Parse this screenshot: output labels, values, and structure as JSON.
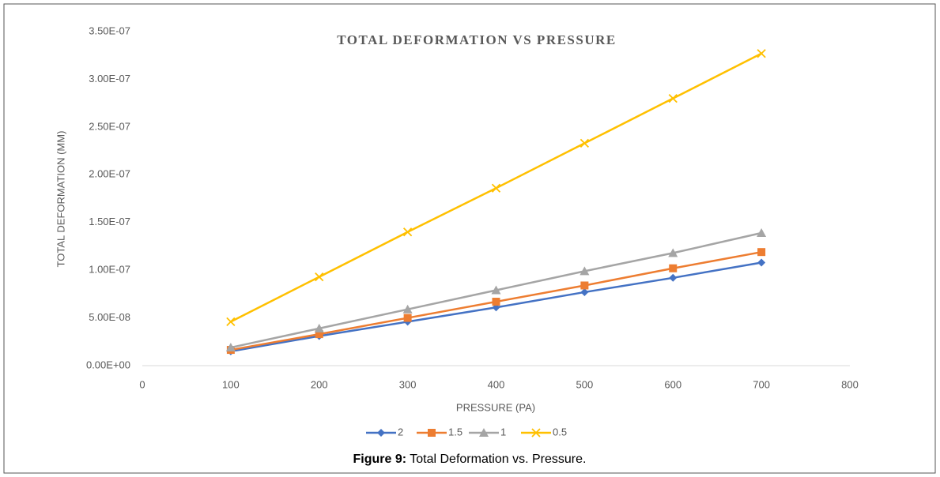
{
  "chart_data": {
    "type": "line",
    "title": "TOTAL DEFORMATION VS PRESSURE",
    "xlabel": "PRESSURE (PA)",
    "ylabel": "TOTAL DEFORMATION (MM)",
    "x": [
      100,
      200,
      300,
      400,
      500,
      600,
      700
    ],
    "series": [
      {
        "name": "2",
        "color": "#4472c4",
        "marker": "diamond",
        "values": [
          1.5e-08,
          3.1e-08,
          4.6e-08,
          6.1e-08,
          7.7e-08,
          9.2e-08,
          1.08e-07
        ]
      },
      {
        "name": "1.5",
        "color": "#ed7d31",
        "marker": "square",
        "values": [
          1.65e-08,
          3.3e-08,
          5e-08,
          6.7e-08,
          8.4e-08,
          1.02e-07,
          1.19e-07
        ]
      },
      {
        "name": "1",
        "color": "#a5a5a5",
        "marker": "triangle",
        "values": [
          1.9e-08,
          3.9e-08,
          5.9e-08,
          7.9e-08,
          9.9e-08,
          1.18e-07,
          1.39e-07
        ]
      },
      {
        "name": "0.5",
        "color": "#ffc000",
        "marker": "x",
        "values": [
          4.6e-08,
          9.3e-08,
          1.4e-07,
          1.86e-07,
          2.33e-07,
          2.8e-07,
          3.27e-07
        ]
      }
    ],
    "xlim": [
      0,
      800
    ],
    "xticks": [
      0,
      100,
      200,
      300,
      400,
      500,
      600,
      700,
      800
    ],
    "ylim": [
      0,
      3.5e-07
    ],
    "yticks": [
      {
        "value": 0,
        "label": "0.00E+00"
      },
      {
        "value": 5e-08,
        "label": "5.00E-08"
      },
      {
        "value": 1e-07,
        "label": "1.00E-07"
      },
      {
        "value": 1.5e-07,
        "label": "1.50E-07"
      },
      {
        "value": 2e-07,
        "label": "2.00E-07"
      },
      {
        "value": 2.5e-07,
        "label": "2.50E-07"
      },
      {
        "value": 3e-07,
        "label": "3.00E-07"
      },
      {
        "value": 3.5e-07,
        "label": "3.50E-07"
      }
    ],
    "grid": false,
    "legend": "bottom",
    "caption": {
      "label": "Figure 9:",
      "text": "Total Deformation vs. Pressure."
    }
  }
}
